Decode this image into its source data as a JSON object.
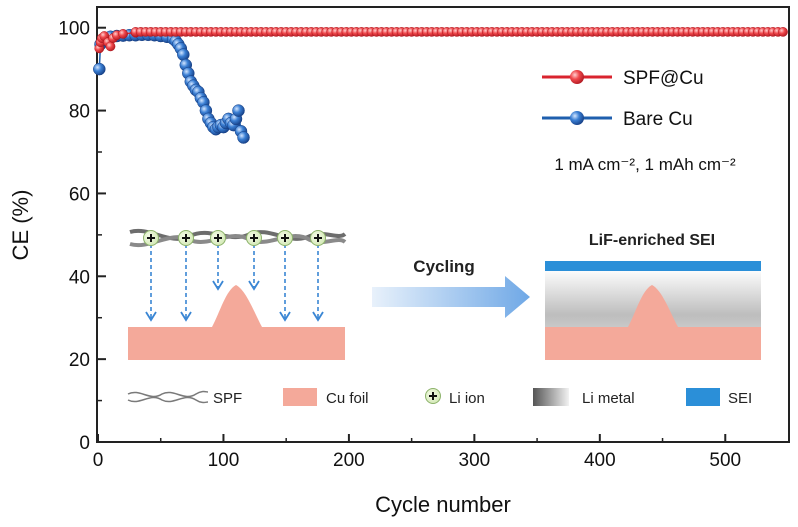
{
  "chart_data": {
    "type": "scatter",
    "xlabel": "Cycle number",
    "ylabel": "CE (%)",
    "xlim": [
      0,
      550
    ],
    "ylim": [
      0,
      105
    ],
    "x_ticks": [
      0,
      100,
      200,
      300,
      400,
      500
    ],
    "y_ticks": [
      0,
      20,
      40,
      60,
      80,
      100
    ],
    "grid": false,
    "legend_position": "top-right",
    "condition_label": "1 mA cm⁻², 1 mAh cm⁻²",
    "series": [
      {
        "name": "SPF@Cu",
        "color": "#e8313a",
        "line_color": "#d9232e",
        "points": [
          [
            1,
            95
          ],
          [
            2,
            96.5
          ],
          [
            3,
            97.5
          ],
          [
            5,
            98
          ],
          [
            8,
            96.5
          ],
          [
            10,
            95.5
          ],
          [
            12,
            97.5
          ],
          [
            15,
            98.2
          ],
          [
            20,
            98.5
          ],
          [
            30,
            98.8
          ]
        ],
        "plateau": {
          "from": 30,
          "to": 547,
          "step": 4,
          "value": 99
        }
      },
      {
        "name": "Bare Cu",
        "color": "#2f6fc4",
        "line_color": "#1f5fae",
        "points": [
          [
            1,
            90
          ],
          [
            2,
            96
          ],
          [
            4,
            97
          ],
          [
            6,
            97.5
          ],
          [
            10,
            97.8
          ],
          [
            15,
            98
          ],
          [
            20,
            98.1
          ],
          [
            25,
            98.2
          ],
          [
            30,
            98.2
          ],
          [
            35,
            98.3
          ],
          [
            40,
            98.3
          ],
          [
            45,
            98.2
          ],
          [
            50,
            98
          ],
          [
            55,
            97.8
          ],
          [
            60,
            97.3
          ],
          [
            62,
            96.8
          ],
          [
            64,
            96
          ],
          [
            66,
            95
          ],
          [
            68,
            93.5
          ],
          [
            70,
            91
          ],
          [
            72,
            89
          ],
          [
            74,
            87
          ],
          [
            76,
            86
          ],
          [
            78,
            85
          ],
          [
            80,
            84.5
          ],
          [
            82,
            83
          ],
          [
            84,
            82
          ],
          [
            86,
            80
          ],
          [
            88,
            78
          ],
          [
            90,
            77
          ],
          [
            92,
            76
          ],
          [
            94,
            75.5
          ],
          [
            96,
            76
          ],
          [
            98,
            76.5
          ],
          [
            100,
            76
          ],
          [
            102,
            77
          ],
          [
            104,
            78
          ],
          [
            106,
            77
          ],
          [
            108,
            76.5
          ],
          [
            110,
            78
          ],
          [
            112,
            80
          ],
          [
            114,
            75
          ],
          [
            116,
            73.5
          ]
        ]
      }
    ]
  },
  "inset": {
    "title": "LiF-enriched SEI",
    "arrow_label": "Cycling",
    "legend": [
      {
        "name": "SPF",
        "icon": "spf-wave-icon"
      },
      {
        "name": "Cu foil",
        "icon": "cu-foil-swatch",
        "color": "#f4a99a"
      },
      {
        "name": "Li ion",
        "icon": "li-ion-icon"
      },
      {
        "name": "Li metal",
        "icon": "li-metal-swatch"
      },
      {
        "name": "SEI",
        "icon": "sei-swatch",
        "color": "#2b8fd8"
      }
    ]
  }
}
